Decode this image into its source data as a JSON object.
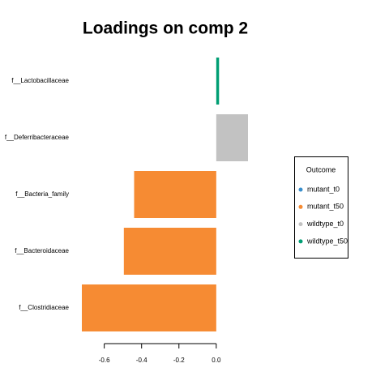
{
  "chart_data": {
    "type": "hbar",
    "title": "Loadings on comp 2",
    "categories": [
      "f__Lactobacillaceae",
      "f__Deferribacteraceae",
      "f__Bacteria_family",
      "f__Bacteroidaceae",
      "f__Clostridiaceae"
    ],
    "values": [
      0.015,
      0.17,
      -0.44,
      -0.495,
      -0.72
    ],
    "colors": [
      "#009E73",
      "#C2C2C2",
      "#F68B33",
      "#F68B33",
      "#F68B33"
    ],
    "xlim": [
      -0.72,
      0.17
    ],
    "xticks": [
      -0.6,
      -0.4,
      -0.2,
      {
        "value": 0,
        "label": "0.0"
      }
    ],
    "legend": {
      "title": "Outcome",
      "items": [
        {
          "name": "mutant_t0",
          "color": "#388ECC"
        },
        {
          "name": "mutant_t50",
          "color": "#F68B33"
        },
        {
          "name": "wildtype_t0",
          "color": "#C2C2C2"
        },
        {
          "name": "wildtype_t50",
          "color": "#009E73"
        }
      ]
    }
  }
}
